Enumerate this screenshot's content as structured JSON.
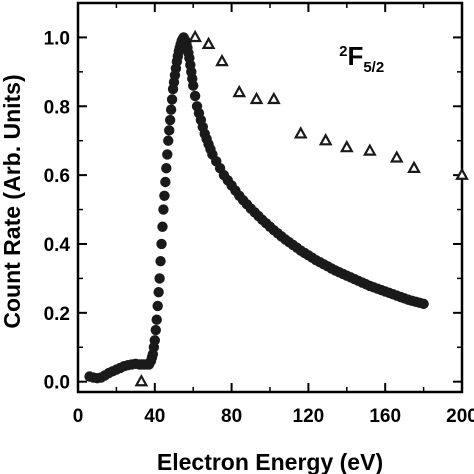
{
  "chart_data": {
    "type": "scatter",
    "title": "",
    "annotation": {
      "base": "F",
      "superscript": "2",
      "subscript": "5/2"
    },
    "xlabel": "Electron Energy (eV)",
    "ylabel": "Count Rate (Arb. Units)",
    "xlim": [
      0,
      200
    ],
    "ylim": [
      -0.03,
      1.1
    ],
    "x_ticks": [
      0,
      40,
      80,
      120,
      160,
      200
    ],
    "y_ticks": [
      0.0,
      0.2,
      0.4,
      0.6,
      0.8,
      1.0
    ],
    "x_tick_labels": [
      "0",
      "40",
      "80",
      "120",
      "160",
      "200"
    ],
    "y_tick_labels": [
      "0.0",
      "0.2",
      "0.4",
      "0.6",
      "0.8",
      "1.0"
    ],
    "grid": false,
    "series": [
      {
        "marker": "circle",
        "color": "#1a1a1a",
        "x": [
          6,
          8,
          10,
          12,
          14,
          16,
          18,
          20,
          22,
          24,
          26,
          28,
          30,
          32,
          33,
          34,
          35,
          36,
          37,
          38,
          38.5,
          39,
          39.5,
          40,
          40.5,
          41,
          41.5,
          42,
          42.5,
          43,
          43.5,
          44,
          44.5,
          45,
          45.5,
          46,
          46.5,
          47,
          47.5,
          48,
          48.5,
          49,
          49.5,
          50,
          50.5,
          51,
          51.5,
          52,
          52.5,
          53,
          53.5,
          54,
          54.5,
          55,
          55.5,
          56,
          56.5,
          57,
          57.5,
          58,
          58.5,
          59,
          59.5,
          60,
          61,
          62,
          63,
          64,
          65,
          66,
          67,
          68,
          69,
          70,
          72,
          74,
          76,
          78,
          80,
          82,
          84,
          86,
          88,
          90,
          92,
          94,
          96,
          98,
          100,
          102,
          104,
          106,
          108,
          110,
          112,
          114,
          116,
          118,
          120,
          122,
          124,
          126,
          128,
          130,
          132,
          134,
          136,
          138,
          140,
          142,
          144,
          146,
          148,
          150,
          152,
          154,
          156,
          158,
          160,
          162,
          164,
          166,
          168,
          170,
          172,
          174,
          176,
          178,
          180
        ],
        "y": [
          0.015,
          0.012,
          0.01,
          0.012,
          0.018,
          0.025,
          0.03,
          0.035,
          0.04,
          0.045,
          0.048,
          0.05,
          0.052,
          0.05,
          0.05,
          0.05,
          0.05,
          0.05,
          0.05,
          0.06,
          0.07,
          0.08,
          0.1,
          0.12,
          0.15,
          0.18,
          0.22,
          0.26,
          0.3,
          0.35,
          0.4,
          0.45,
          0.5,
          0.54,
          0.58,
          0.62,
          0.66,
          0.7,
          0.73,
          0.76,
          0.79,
          0.82,
          0.85,
          0.87,
          0.89,
          0.91,
          0.93,
          0.945,
          0.96,
          0.97,
          0.98,
          0.99,
          0.995,
          1.0,
          0.995,
          0.99,
          0.98,
          0.97,
          0.955,
          0.94,
          0.92,
          0.9,
          0.88,
          0.86,
          0.83,
          0.8,
          0.78,
          0.76,
          0.74,
          0.72,
          0.705,
          0.69,
          0.675,
          0.66,
          0.64,
          0.62,
          0.6,
          0.585,
          0.57,
          0.555,
          0.54,
          0.527,
          0.515,
          0.503,
          0.492,
          0.481,
          0.47,
          0.46,
          0.45,
          0.44,
          0.431,
          0.422,
          0.413,
          0.405,
          0.397,
          0.389,
          0.381,
          0.374,
          0.367,
          0.36,
          0.353,
          0.347,
          0.341,
          0.335,
          0.329,
          0.323,
          0.318,
          0.313,
          0.308,
          0.303,
          0.298,
          0.293,
          0.288,
          0.283,
          0.278,
          0.274,
          0.27,
          0.266,
          0.262,
          0.258,
          0.254,
          0.25,
          0.246,
          0.242,
          0.238,
          0.235,
          0.232,
          0.229,
          0.226
        ]
      },
      {
        "marker": "triangle",
        "color": "#1a1a1a",
        "x": [
          33,
          61,
          68,
          75,
          84,
          93,
          102,
          116,
          129,
          140,
          152,
          166,
          175,
          200
        ],
        "y": [
          0.0,
          1.0,
          0.98,
          0.93,
          0.84,
          0.82,
          0.82,
          0.72,
          0.7,
          0.68,
          0.67,
          0.65,
          0.62,
          0.6
        ]
      }
    ]
  }
}
